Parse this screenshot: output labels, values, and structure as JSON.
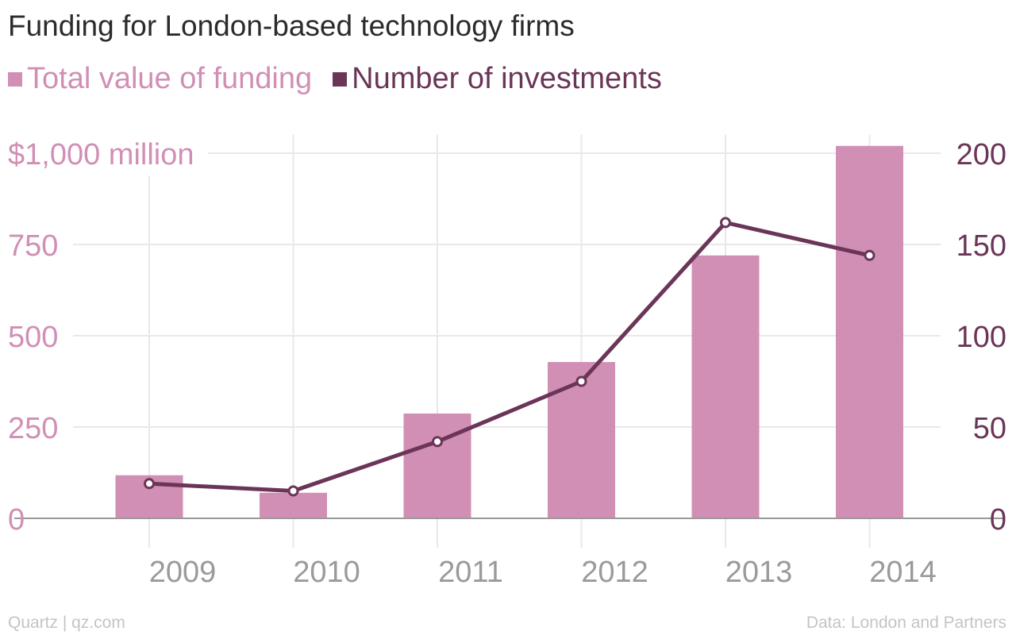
{
  "title": "Funding for London-based technology firms",
  "footer": {
    "left": "Quartz | qz.com",
    "right": "Data: London and Partners"
  },
  "colors": {
    "bars": "#d18fb6",
    "line": "#6b3558",
    "grid": "#e8e8e8",
    "axis_x": "#9a9a9a",
    "left_ticks": "#d18fb6",
    "right_ticks": "#6b3558",
    "x_ticks": "#9a9a9a"
  },
  "chart_data": {
    "type": "bar",
    "categories": [
      "2009",
      "2010",
      "2011",
      "2012",
      "2013",
      "2014"
    ],
    "series": [
      {
        "name": "Total value of funding",
        "type": "bar",
        "axis": "left",
        "values": [
          118,
          70,
          287,
          428,
          720,
          1020
        ]
      },
      {
        "name": "Number of investments",
        "type": "line",
        "axis": "right",
        "values": [
          19,
          15,
          42,
          75,
          162,
          144
        ]
      }
    ],
    "y_left": {
      "ylim": [
        0,
        1000
      ],
      "ticks": [
        0,
        250,
        500,
        750,
        1000
      ],
      "tick_labels": [
        "0",
        "250",
        "500",
        "750",
        "$1,000 million"
      ]
    },
    "y_right": {
      "ylim": [
        0,
        200
      ],
      "ticks": [
        0,
        50,
        100,
        150,
        200
      ],
      "tick_labels": [
        "0",
        "50",
        "100",
        "150",
        "200"
      ]
    },
    "grid": true,
    "legend_position": "top-left"
  }
}
